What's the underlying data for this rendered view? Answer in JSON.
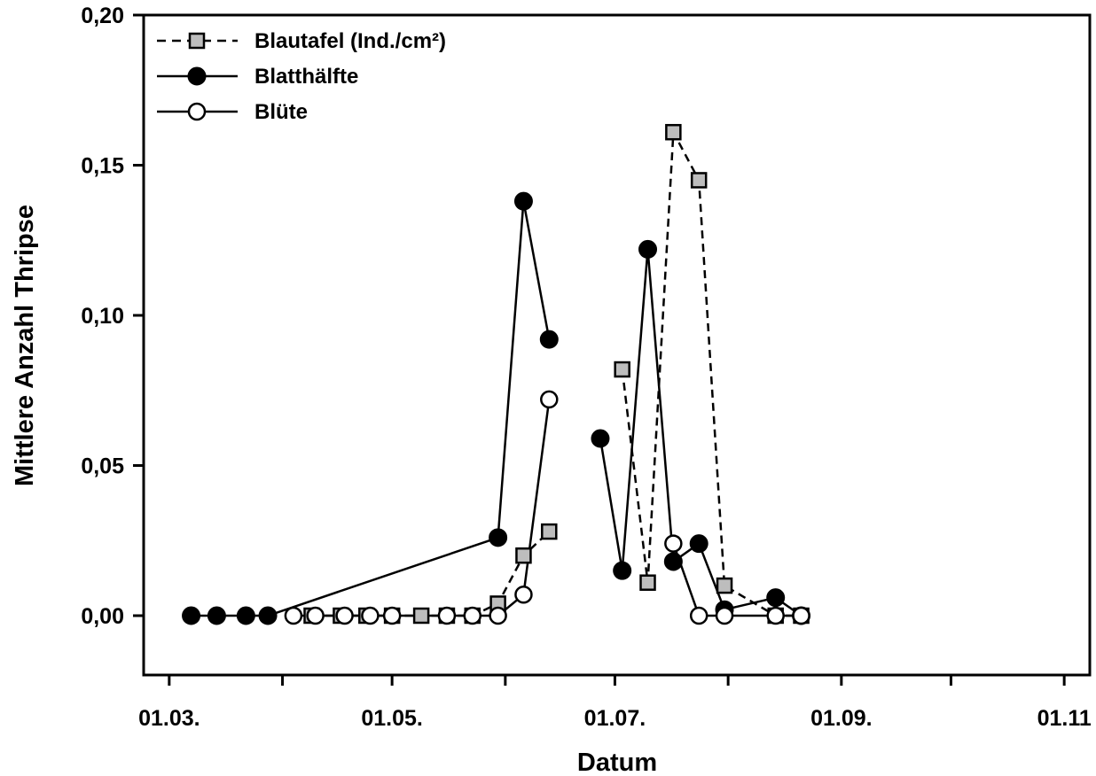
{
  "chart_data": {
    "type": "line",
    "xlabel": "Datum",
    "ylabel": "Mittlere Anzahl Thripse",
    "ylim": [
      0,
      0.2
    ],
    "xlim": [
      "2000-02-23",
      "2000-11-08"
    ],
    "x_ticks": [
      {
        "date": "2000-03-01",
        "label": "01.03."
      },
      {
        "date": "2000-05-01",
        "label": "01.05."
      },
      {
        "date": "2000-07-01",
        "label": "01.07."
      },
      {
        "date": "2000-09-01",
        "label": "01.09."
      },
      {
        "date": "2000-11-01",
        "label": "01.11"
      }
    ],
    "x_minor_ticks": [
      "2000-04-01",
      "2000-06-01",
      "2000-08-01",
      "2000-10-01"
    ],
    "y_ticks": [
      {
        "value": 0.0,
        "label": "0,00"
      },
      {
        "value": 0.05,
        "label": "0,05"
      },
      {
        "value": 0.1,
        "label": "0,10"
      },
      {
        "value": 0.15,
        "label": "0,15"
      },
      {
        "value": 0.2,
        "label": "0,20"
      }
    ],
    "legend_position": "top-left",
    "grid": false,
    "series": [
      {
        "name": "Blautafel (Ind./cm²)",
        "marker": "square",
        "line": "dashed",
        "color": "#bdbdbd",
        "points": [
          {
            "x": "2000-04-09",
            "y": 0.0
          },
          {
            "x": "2000-04-17",
            "y": 0.0
          },
          {
            "x": "2000-04-24",
            "y": 0.0
          },
          {
            "x": "2000-05-01",
            "y": 0.0
          },
          {
            "x": "2000-05-09",
            "y": 0.0
          },
          {
            "x": "2000-05-16",
            "y": 0.0
          },
          {
            "x": "2000-05-23",
            "y": 0.0
          },
          {
            "x": "2000-05-30",
            "y": 0.004
          },
          {
            "x": "2000-06-06",
            "y": 0.02
          },
          {
            "x": "2000-06-13",
            "y": 0.028
          }
        ],
        "points_2": [
          {
            "x": "2000-07-03",
            "y": 0.082
          },
          {
            "x": "2000-07-10",
            "y": 0.011
          },
          {
            "x": "2000-07-17",
            "y": 0.161
          },
          {
            "x": "2000-07-24",
            "y": 0.145
          },
          {
            "x": "2000-07-31",
            "y": 0.01
          },
          {
            "x": "2000-08-14",
            "y": 0.0
          },
          {
            "x": "2000-08-21",
            "y": 0.0
          }
        ]
      },
      {
        "name": "Blatthälfte",
        "marker": "circle-filled",
        "line": "solid",
        "color": "#000000",
        "points": [
          {
            "x": "2000-03-07",
            "y": 0.0
          },
          {
            "x": "2000-03-14",
            "y": 0.0
          },
          {
            "x": "2000-03-22",
            "y": 0.0
          },
          {
            "x": "2000-03-28",
            "y": 0.0
          },
          {
            "x": "2000-05-30",
            "y": 0.026
          },
          {
            "x": "2000-06-06",
            "y": 0.138
          },
          {
            "x": "2000-06-13",
            "y": 0.092
          }
        ],
        "points_2": [
          {
            "x": "2000-06-27",
            "y": 0.059
          },
          {
            "x": "2000-07-03",
            "y": 0.015
          },
          {
            "x": "2000-07-10",
            "y": 0.122
          },
          {
            "x": "2000-07-17",
            "y": 0.018
          },
          {
            "x": "2000-07-24",
            "y": 0.024
          },
          {
            "x": "2000-07-31",
            "y": 0.002
          },
          {
            "x": "2000-08-14",
            "y": 0.006
          },
          {
            "x": "2000-08-21",
            "y": 0.0
          }
        ]
      },
      {
        "name": "Blüte",
        "marker": "circle-open",
        "line": "solid",
        "color": "#ffffff",
        "points": [
          {
            "x": "2000-04-04",
            "y": 0.0
          },
          {
            "x": "2000-04-10",
            "y": 0.0
          },
          {
            "x": "2000-04-18",
            "y": 0.0
          },
          {
            "x": "2000-04-25",
            "y": 0.0
          },
          {
            "x": "2000-05-01",
            "y": 0.0
          },
          {
            "x": "2000-05-16",
            "y": 0.0
          },
          {
            "x": "2000-05-23",
            "y": 0.0
          },
          {
            "x": "2000-05-30",
            "y": 0.0
          },
          {
            "x": "2000-06-06",
            "y": 0.007
          },
          {
            "x": "2000-06-13",
            "y": 0.072
          }
        ],
        "points_2": [
          {
            "x": "2000-07-17",
            "y": 0.024
          },
          {
            "x": "2000-07-24",
            "y": 0.0
          },
          {
            "x": "2000-07-31",
            "y": 0.0
          },
          {
            "x": "2000-08-14",
            "y": 0.0
          },
          {
            "x": "2000-08-21",
            "y": 0.0
          }
        ]
      }
    ]
  }
}
